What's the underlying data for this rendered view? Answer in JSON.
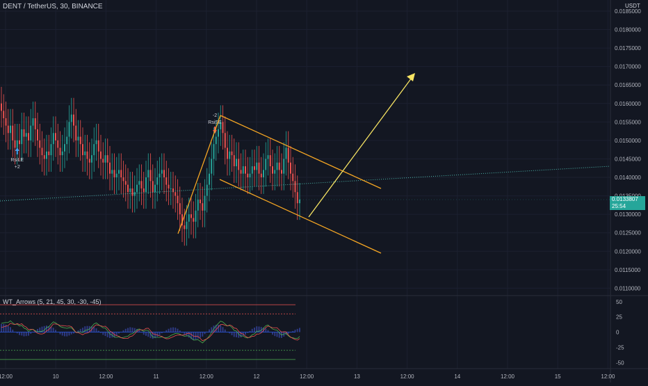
{
  "header": {
    "symbol_title": "DENT / TetherUS, 30, BINANCE",
    "currency": "USDT"
  },
  "price_axis": {
    "labels": [
      "0.0185000",
      "0.0180000",
      "0.0175000",
      "0.0170000",
      "0.0165000",
      "0.0160000",
      "0.0155000",
      "0.0150000",
      "0.0145000",
      "0.0140000",
      "0.0135000",
      "0.0130000",
      "0.0125000",
      "0.0120000",
      "0.0115000",
      "0.0110000"
    ]
  },
  "last_price": {
    "value": "0.0133807",
    "countdown": "25:54",
    "color": "#26a69a"
  },
  "time_axis": {
    "labels": [
      "12:00",
      "10",
      "12:00",
      "11",
      "12:00",
      "12",
      "12:00",
      "13",
      "12:00",
      "14",
      "12:00",
      "15",
      "12:00"
    ]
  },
  "annotations": {
    "long_signal": {
      "label": "RsiLE",
      "qty": "+2"
    },
    "short_signal": {
      "label": "RsiSE",
      "qty": "-2"
    }
  },
  "indicator": {
    "name": "WT_Arrows (5, 21, 45, 30, -30, -45)",
    "axis_labels": [
      "50",
      "25",
      "0",
      "-25",
      "-50"
    ]
  },
  "colors": {
    "background": "#131722",
    "bull": "#26a69a",
    "bear": "#ef5350",
    "channel": "#f5a623",
    "arrow": "#f7e463",
    "trendline": "#4db6ac"
  },
  "chart_data": {
    "type": "candlestick",
    "title": "DENT / TetherUS, 30, BINANCE",
    "x_ticks": [
      "12:00",
      "10",
      "12:00",
      "11",
      "12:00",
      "12",
      "12:00",
      "13",
      "12:00",
      "14",
      "12:00",
      "15",
      "12:00"
    ],
    "ylim": [
      0.0108,
      0.0188
    ],
    "closes": [
      0.0158,
      0.0156,
      0.0154,
      0.0152,
      0.0154,
      0.015,
      0.0148,
      0.015,
      0.0149,
      0.0153,
      0.0151,
      0.0152,
      0.015,
      0.0154,
      0.0156,
      0.0153,
      0.015,
      0.0148,
      0.0146,
      0.0145,
      0.0147,
      0.0146,
      0.0149,
      0.0152,
      0.015,
      0.0148,
      0.0146,
      0.0147,
      0.0149,
      0.0151,
      0.0155,
      0.0157,
      0.0154,
      0.015,
      0.0151,
      0.0149,
      0.0146,
      0.0147,
      0.0145,
      0.0144,
      0.0146,
      0.0149,
      0.015,
      0.0147,
      0.0145,
      0.0144,
      0.0146,
      0.0144,
      0.0141,
      0.0142,
      0.014,
      0.0141,
      0.0142,
      0.014,
      0.0139,
      0.0138,
      0.0136,
      0.0137,
      0.0135,
      0.0136,
      0.0138,
      0.0139,
      0.0137,
      0.0136,
      0.014,
      0.0142,
      0.0139,
      0.0136,
      0.0138,
      0.014,
      0.0141,
      0.0142,
      0.014,
      0.0138,
      0.0137,
      0.0137,
      0.0136,
      0.0135,
      0.0133,
      0.013,
      0.0127,
      0.0126,
      0.0128,
      0.013,
      0.0129,
      0.0128,
      0.0131,
      0.0134,
      0.0133,
      0.0131,
      0.0135,
      0.0138,
      0.0141,
      0.0145,
      0.0149,
      0.0151,
      0.0153,
      0.0155,
      0.0152,
      0.0148,
      0.0145,
      0.0147,
      0.0146,
      0.0143,
      0.0145,
      0.0142,
      0.0141,
      0.0143,
      0.0141,
      0.014,
      0.0141,
      0.0143,
      0.0142,
      0.0144,
      0.0141,
      0.014,
      0.0142,
      0.0145,
      0.0146,
      0.0143,
      0.0141,
      0.0142,
      0.0144,
      0.0142,
      0.0141,
      0.0145,
      0.0148,
      0.0144,
      0.0141,
      0.0139,
      0.0136,
      0.0133,
      0.0134
    ],
    "channel_upper": {
      "x": [
        "12:00 (11)",
        "13 +12:00"
      ],
      "y": [
        0.01565,
        0.01365
      ]
    },
    "channel_lower": {
      "y": [
        0.0139,
        0.0119
      ]
    },
    "projection_target": 0.0168,
    "ind_ylim": [
      -60,
      60
    ],
    "ind_levels": [
      45,
      30,
      0,
      -30,
      -45
    ]
  }
}
